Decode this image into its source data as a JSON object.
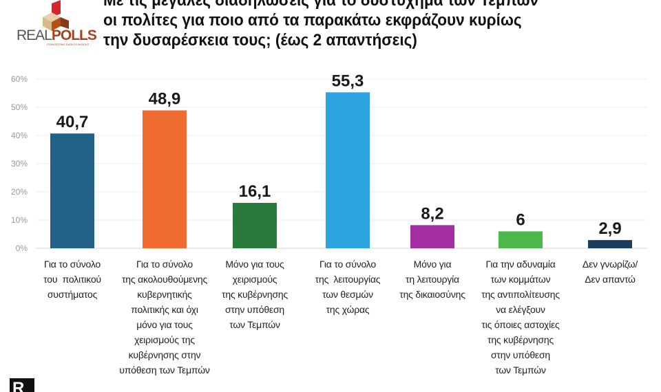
{
  "logo": {
    "text_a": "REAL",
    "text_b": "POLLS",
    "tagline": "CONVERTING DATA TO INSIGHT"
  },
  "title": [
    "Με τις μεγάλες διαδηλώσεις για το δυστύχημα των Τεμπών",
    "οι πολίτες για ποιο από τα παρακάτω εκφράζουν κυρίως",
    "την δυσαρέσκεια τους; (έως 2 απαντήσεις)"
  ],
  "corner_mark": "R",
  "chart_data": {
    "type": "bar",
    "title": "Με τις μεγάλες διαδηλώσεις για το δυστύχημα των Τεμπών οι πολίτες για ποιο από τα παρακάτω εκφράζουν κυρίως την δυσαρέσκεια τους; (έως 2 απαντήσεις)",
    "xlabel": "",
    "ylabel": "",
    "ylim": [
      0,
      60
    ],
    "grid": true,
    "yticks": [
      "0%",
      "10%",
      "20%",
      "30%",
      "40%",
      "50%",
      "60%"
    ],
    "categories": [
      "Για το σύνολο\nτου  πολιτικού\nσυστήματος",
      "Για το σύνολο\nτης ακολουθούμενης\nκυβερνητικής\nπολιτικής και όχι\nμόνο για τους\nχειρισμούς της\nκυβέρνησης στην\nυπόθεση των Τεμπών",
      "Μόνο για τους\nχειρισμούς\nτης κυβέρνησης\nστην υπόθεση\nτων Τεμπών",
      "Για το σύνολο\nτης  λειτουργίας\nτων θεσμών\nτης χώρας",
      "Μόνο για\nτη λειτουργία\nτης δικαιοσύνης",
      "Για την αδυναμία\nτων κομμάτων\nτης αντιπολίτευσης\nνα ελέγξουν\nτις όποιες αστοχίες\nτης κυβέρνησης\nστην υπόθεση\nτων Τεμπών",
      "Δεν γνωρίζω/\nΔεν απαντώ"
    ],
    "values": [
      40.7,
      48.9,
      16.1,
      55.3,
      8.2,
      6,
      2.9
    ],
    "labels": [
      "40,7",
      "48,9",
      "16,1",
      "55,3",
      "8,2",
      "6",
      "2,9"
    ],
    "colors": [
      "#22618a",
      "#f06c30",
      "#2a7a3c",
      "#2ea3e2",
      "#a22ea2",
      "#4db84a",
      "#1b3e5e"
    ]
  }
}
